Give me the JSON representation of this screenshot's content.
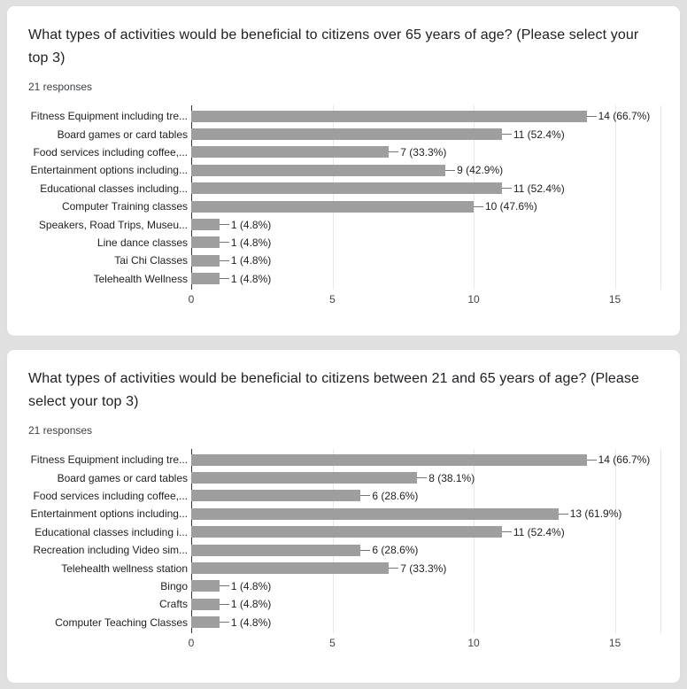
{
  "cards": [
    {
      "title": "What types of activities would be beneficial to citizens over 65 years of age? (Please select your top 3)",
      "responses_label": "21 responses"
    },
    {
      "title": "What types of activities would be beneficial to citizens between 21 and 65 years of age? (Please select your top 3)",
      "responses_label": "21 responses"
    }
  ],
  "chart_data": [
    {
      "type": "bar",
      "orientation": "horizontal",
      "title": "What types of activities would be beneficial to citizens over 65 years of age? (Please select your top 3)",
      "categories": [
        "Fitness Equipment including tre...",
        "Board games or card tables",
        "Food services including coffee,...",
        "Entertainment options including...",
        "Educational classes including...",
        "Computer Training classes",
        "Speakers, Road Trips, Museu...",
        "Line dance classes",
        "Tai Chi Classes",
        "Telehealth Wellness"
      ],
      "values": [
        14,
        11,
        7,
        9,
        11,
        10,
        1,
        1,
        1,
        1
      ],
      "value_labels": [
        "14 (66.7%)",
        "11 (52.4%)",
        "7 (33.3%)",
        "9 (42.9%)",
        "11 (52.4%)",
        "10 (47.6%)",
        "1 (4.8%)",
        "1 (4.8%)",
        "1 (4.8%)",
        "1 (4.8%)"
      ],
      "xticks": [
        0,
        5,
        10,
        15
      ],
      "xlim": [
        0,
        16.6
      ],
      "bar_color": "#9e9e9e",
      "legend": "none",
      "grid": true
    },
    {
      "type": "bar",
      "orientation": "horizontal",
      "title": "What types of activities would be beneficial to citizens between 21 and 65 years of age? (Please select your top 3)",
      "categories": [
        "Fitness Equipment including tre...",
        "Board games or card tables",
        "Food services including coffee,...",
        "Entertainment options including...",
        "Educational classes including i...",
        "Recreation including Video sim...",
        "Telehealth wellness station",
        "Bingo",
        "Crafts",
        "Computer Teaching Classes"
      ],
      "values": [
        14,
        8,
        6,
        13,
        11,
        6,
        7,
        1,
        1,
        1
      ],
      "value_labels": [
        "14 (66.7%)",
        "8 (38.1%)",
        "6 (28.6%)",
        "13 (61.9%)",
        "11 (52.4%)",
        "6 (28.6%)",
        "7 (33.3%)",
        "1 (4.8%)",
        "1 (4.8%)",
        "1 (4.8%)"
      ],
      "xticks": [
        0,
        5,
        10,
        15
      ],
      "xlim": [
        0,
        16.6
      ],
      "bar_color": "#9e9e9e",
      "legend": "none",
      "grid": true
    }
  ]
}
